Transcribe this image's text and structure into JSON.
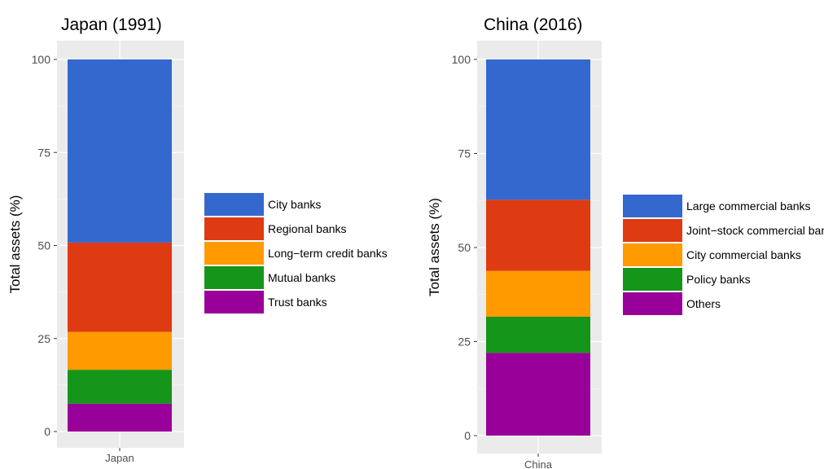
{
  "colors": [
    "#3468cf",
    "#de3b13",
    "#ff9a00",
    "#15951a",
    "#990099"
  ],
  "chart_data": [
    {
      "type": "bar",
      "stacked": true,
      "title": "Japan (1991)",
      "xlabel": "",
      "ylabel": "Total assets (%)",
      "categories": [
        "Japan"
      ],
      "ylim": [
        0,
        100
      ],
      "yticks": [
        "0",
        "25",
        "50",
        "75",
        "100"
      ],
      "grid": true,
      "legend_position": "right",
      "series": [
        {
          "name": "City banks",
          "values": [
            49.2
          ]
        },
        {
          "name": "Regional banks",
          "values": [
            24.0
          ]
        },
        {
          "name": "Long−term credit banks",
          "values": [
            10.2
          ]
        },
        {
          "name": "Mutual banks",
          "values": [
            9.1
          ]
        },
        {
          "name": "Trust banks",
          "values": [
            7.5
          ]
        }
      ]
    },
    {
      "type": "bar",
      "stacked": true,
      "title": "China (2016)",
      "xlabel": "",
      "ylabel": "Total assets (%)",
      "categories": [
        "China"
      ],
      "ylim": [
        0,
        100
      ],
      "yticks": [
        "0",
        "25",
        "50",
        "75",
        "100"
      ],
      "grid": true,
      "legend_position": "right",
      "series": [
        {
          "name": "Large commercial banks",
          "values": [
            37.3
          ]
        },
        {
          "name": "Joint−stock commercial banks",
          "values": [
            18.9
          ]
        },
        {
          "name": "City commercial banks",
          "values": [
            12.2
          ]
        },
        {
          "name": "Policy banks",
          "values": [
            9.6
          ]
        },
        {
          "name": "Others",
          "values": [
            22.0
          ]
        }
      ]
    }
  ]
}
